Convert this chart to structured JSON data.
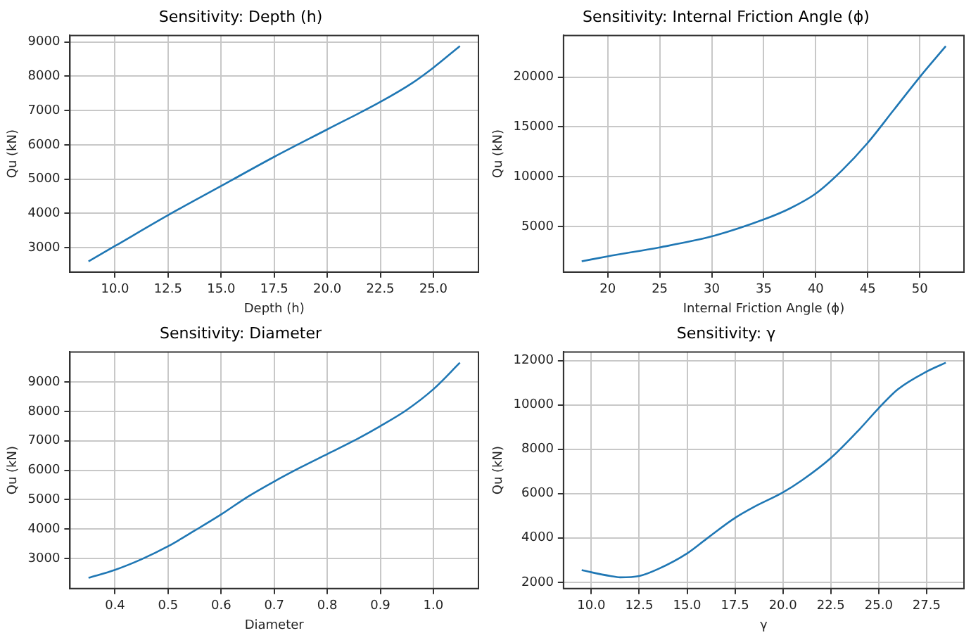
{
  "chart_data": [
    {
      "type": "line",
      "title": "Sensitivity: Depth (h)",
      "xlabel": "Depth (h)",
      "ylabel": "Qu (kN)",
      "x": [
        8.75,
        10,
        12.5,
        15,
        17.5,
        20,
        22.5,
        24,
        25,
        26.25
      ],
      "series": [
        {
          "color": "#1f77b4",
          "values": [
            2600,
            3050,
            3950,
            4800,
            5650,
            6450,
            7250,
            7800,
            8250,
            8880
          ]
        }
      ],
      "xlim": [
        7.875,
        27.125
      ],
      "ylim": [
        2290,
        9190
      ],
      "xticks": [
        {
          "value": 10,
          "label": "10.0"
        },
        12.5,
        {
          "value": 15,
          "label": "15.0"
        },
        17.5,
        {
          "value": 20,
          "label": "20.0"
        },
        22.5,
        {
          "value": 25,
          "label": "25.0"
        }
      ],
      "yticks": [
        3000,
        4000,
        5000,
        6000,
        7000,
        8000,
        9000
      ],
      "grid": true
    },
    {
      "type": "line",
      "title": "Sensitivity: Internal Friction Angle (ϕ)",
      "xlabel": "Internal Friction Angle (ϕ)",
      "ylabel": "Qu (kN)",
      "x": [
        17.5,
        20,
        25,
        30,
        35,
        37.5,
        40,
        42.5,
        45,
        47.5,
        50,
        52.5
      ],
      "series": [
        {
          "color": "#1f77b4",
          "values": [
            1500,
            2000,
            2900,
            4000,
            5700,
            6800,
            8300,
            10600,
            13400,
            16700,
            20000,
            23100
          ]
        }
      ],
      "xlim": [
        15.75,
        54.25
      ],
      "ylim": [
        420,
        24180
      ],
      "xticks": [
        20,
        25,
        30,
        35,
        40,
        45,
        50
      ],
      "yticks": [
        5000,
        10000,
        15000,
        20000
      ],
      "grid": true
    },
    {
      "type": "line",
      "title": "Sensitivity: Diameter",
      "xlabel": "Diameter",
      "ylabel": "Qu (kN)",
      "x": [
        0.35,
        0.4,
        0.45,
        0.5,
        0.55,
        0.6,
        0.65,
        0.7,
        0.75,
        0.8,
        0.85,
        0.9,
        0.95,
        1.0,
        1.05
      ],
      "series": [
        {
          "color": "#1f77b4",
          "values": [
            2350,
            2620,
            2980,
            3420,
            3950,
            4500,
            5100,
            5620,
            6100,
            6550,
            7000,
            7500,
            8050,
            8750,
            9650
          ]
        }
      ],
      "xlim": [
        0.315,
        1.085
      ],
      "ylim": [
        1985,
        10015
      ],
      "xticks": [
        0.4,
        0.5,
        0.6,
        0.7,
        0.8,
        0.9,
        {
          "value": 1,
          "label": "1.0"
        }
      ],
      "yticks": [
        3000,
        4000,
        5000,
        6000,
        7000,
        8000,
        9000
      ],
      "grid": true
    },
    {
      "type": "line",
      "title": "Sensitivity: γ",
      "xlabel": "γ",
      "ylabel": "Qu (kN)",
      "x": [
        9.5,
        10,
        11,
        11.5,
        12.5,
        13.5,
        15,
        16,
        17.5,
        18.5,
        20,
        21,
        22.5,
        24,
        25,
        26,
        27.5,
        28.5
      ],
      "series": [
        {
          "color": "#1f77b4",
          "values": [
            2550,
            2450,
            2280,
            2220,
            2280,
            2600,
            3300,
            3950,
            4900,
            5400,
            6050,
            6600,
            7600,
            8900,
            9850,
            10700,
            11500,
            11900
          ]
        }
      ],
      "xlim": [
        8.55,
        29.45
      ],
      "ylim": [
        1715,
        12385
      ],
      "xticks": [
        {
          "value": 10,
          "label": "10.0"
        },
        12.5,
        {
          "value": 15,
          "label": "15.0"
        },
        17.5,
        {
          "value": 20,
          "label": "20.0"
        },
        22.5,
        {
          "value": 25,
          "label": "25.0"
        },
        27.5
      ],
      "yticks": [
        2000,
        4000,
        6000,
        8000,
        10000,
        12000
      ],
      "grid": true
    }
  ]
}
